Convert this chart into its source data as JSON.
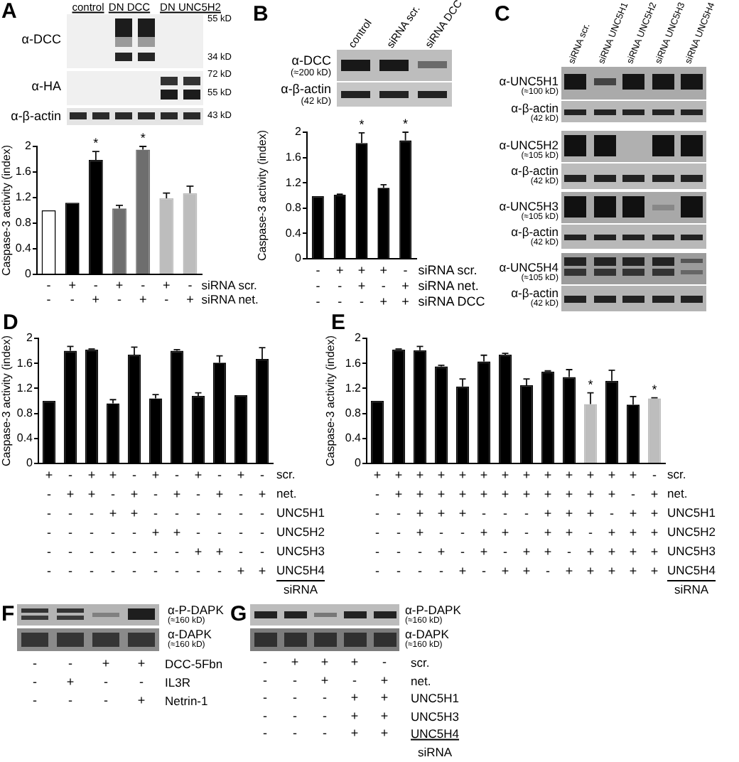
{
  "chart_data": [
    {
      "type": "other",
      "title": "A",
      "categories": [
        "control",
        "DN DCC",
        "DN UNC5H2"
      ],
      "annotations": [
        "α-DCC",
        "α-HA",
        "α-β-actin",
        "55 kD",
        "34 kD",
        "72 kD",
        "55 kD",
        "43 kD"
      ]
    },
    {
      "type": "bar",
      "ylabel": "Caspase-3 activity (index)",
      "categories": [
        "-\n-",
        "+\n-",
        "-\n+",
        "+\n-",
        "-\n+",
        "+\n-",
        "-\n+"
      ],
      "values": [
        1.0,
        1.12,
        1.79,
        1.03,
        1.95,
        1.19,
        1.27
      ],
      "colors": [
        "#ffffff",
        "#000000",
        "#000000",
        "#6e6e6e",
        "#6e6e6e",
        "#bdbdbd",
        "#bdbdbd"
      ],
      "errors": [
        null,
        null,
        [
          1.79,
          1.92
        ],
        [
          1.03,
          1.08
        ],
        [
          1.95,
          2.0
        ],
        [
          1.19,
          1.27
        ],
        [
          1.27,
          1.38
        ]
      ],
      "value_labels": [
        null,
        null,
        "*",
        null,
        "*",
        null,
        null
      ],
      "ylim": [
        0,
        2
      ],
      "yticks": [
        0,
        0.4,
        0.8,
        1.2,
        1.6,
        2
      ],
      "annotations": [
        "siRNA scr.",
        "siRNA net."
      ]
    },
    {
      "type": "other",
      "title": "B",
      "categories": [
        "control",
        "siRNA scr.",
        "siRNA DCC"
      ],
      "annotations": [
        "α-DCC",
        "(≈200 kD)",
        "α-β-actin",
        "(42 kD)"
      ]
    },
    {
      "type": "bar",
      "ylabel": "Caspase-3 activity (index)",
      "categories": [
        "-\n-\n-",
        "+\n-\n-",
        "+\n+\n-",
        "+\n-\n+",
        "-\n+\n+"
      ],
      "values": [
        0.99,
        1.01,
        1.83,
        1.12,
        1.87
      ],
      "color": "#000000",
      "errors": [
        null,
        [
          1.01,
          1.02
        ],
        [
          1.83,
          1.99
        ],
        [
          1.12,
          1.17
        ],
        [
          1.87,
          2.0
        ]
      ],
      "value_labels": [
        null,
        null,
        "*",
        null,
        "*"
      ],
      "ylim": [
        0,
        2
      ],
      "yticks": [
        0,
        0.4,
        0.8,
        1.2,
        1.6,
        2
      ],
      "annotations": [
        "siRNA scr.",
        "siRNA net.",
        "siRNA DCC"
      ]
    },
    {
      "type": "other",
      "title": "C",
      "categories": [
        "siRNA scr.",
        "siRNA UNC5H1",
        "siRNA UNC5H2",
        "siRNA UNC5H3",
        "siRNA UNC5H4"
      ],
      "annotations": [
        "α-UNC5H1",
        "(≈100 kD)",
        "α-β-actin",
        "(42 kD)",
        "α-UNC5H2",
        "(≈105 kD)",
        "α-β-actin",
        "(42 kD)",
        "α-UNC5H3",
        "(≈105 kD)",
        "α-β-actin",
        "(42 kD)",
        "α-UNC5H4",
        "(≈105 kD)",
        "α-β-actin",
        "(42 kD)"
      ]
    },
    {
      "type": "bar",
      "title": "D",
      "ylabel": "Caspase-3 activity (index)",
      "xlabel": "siRNA",
      "categories": [
        "+\n-\n-\n-\n-\n-",
        "-\n+\n-\n-\n-\n-",
        "+\n+\n-\n-\n-\n-",
        "+\n-\n+\n-\n-\n-",
        "-\n+\n+\n-\n-\n-",
        "+\n-\n-\n+\n-\n-",
        "-\n+\n-\n+\n-\n-",
        "+\n-\n-\n-\n+\n-",
        "-\n+\n-\n-\n+\n-",
        "+\n-\n-\n-\n-\n+",
        "-\n+\n-\n-\n-\n+"
      ],
      "values": [
        1.0,
        1.8,
        1.82,
        0.96,
        1.74,
        1.04,
        1.8,
        1.08,
        1.61,
        1.09,
        1.67
      ],
      "color": "#000000",
      "errors": [
        null,
        [
          1.8,
          1.87
        ],
        [
          1.82,
          1.83
        ],
        [
          0.96,
          1.02
        ],
        [
          1.74,
          1.86
        ],
        [
          1.04,
          1.1
        ],
        [
          1.8,
          1.82
        ],
        [
          1.08,
          1.13
        ],
        [
          1.61,
          1.72
        ],
        null,
        [
          1.67,
          1.85
        ]
      ],
      "ylim": [
        0,
        2
      ],
      "yticks": [
        0,
        0.4,
        0.8,
        1.2,
        1.6,
        2
      ],
      "annotations": [
        "scr.",
        "net.",
        "UNC5H1",
        "UNC5H2",
        "UNC5H3",
        "UNC5H4"
      ]
    },
    {
      "type": "bar",
      "title": "E",
      "ylabel": "Caspase-3 activity (index)",
      "xlabel": "siRNA",
      "categories": [
        "+\n-\n-\n-\n-\n-",
        "+\n+\n-\n-\n-\n-",
        "+\n+\n+\n+\n-\n-",
        "+\n+\n+\n-\n+\n-",
        "+\n+\n+\n-\n-\n+",
        "+\n+\n-\n+\n+\n-",
        "+\n+\n-\n+\n-\n+",
        "+\n+\n-\n-\n+\n+",
        "+\n+\n+\n+\n+\n-",
        "+\n+\n+\n+\n-\n+",
        "+\n+\n+\n-\n+\n+",
        "+\n+\n-\n+\n+\n+",
        "+\n-\n+\n+\n+\n+",
        "-\n+\n+\n+\n+\n+"
      ],
      "values": [
        1.0,
        1.82,
        1.81,
        1.55,
        1.23,
        1.63,
        1.74,
        1.25,
        1.47,
        1.38,
        0.95,
        1.32,
        0.94,
        1.04
      ],
      "colors": [
        "#000000",
        "#000000",
        "#000000",
        "#000000",
        "#000000",
        "#000000",
        "#000000",
        "#000000",
        "#000000",
        "#000000",
        "#bdbdbd",
        "#000000",
        "#000000",
        "#bdbdbd"
      ],
      "errors": [
        null,
        [
          1.82,
          1.83
        ],
        [
          1.81,
          1.87
        ],
        [
          1.55,
          1.57
        ],
        [
          1.23,
          1.35
        ],
        [
          1.63,
          1.73
        ],
        [
          1.74,
          1.76
        ],
        [
          1.25,
          1.35
        ],
        [
          1.47,
          1.48
        ],
        [
          1.38,
          1.5
        ],
        [
          0.95,
          1.13
        ],
        [
          1.32,
          1.49
        ],
        [
          0.94,
          1.07
        ],
        [
          1.04,
          1.05
        ]
      ],
      "value_labels": [
        null,
        null,
        null,
        null,
        null,
        null,
        null,
        null,
        null,
        null,
        "*",
        null,
        null,
        "*"
      ],
      "ylim": [
        0,
        2
      ],
      "yticks": [
        0,
        0.4,
        0.8,
        1.2,
        1.6,
        2
      ],
      "annotations": [
        "scr.",
        "net.",
        "UNC5H1",
        "UNC5H2",
        "UNC5H3",
        "UNC5H4"
      ]
    },
    {
      "type": "other",
      "title": "F",
      "categories": [
        "-\n-\n-",
        "-\n+\n-",
        "+\n-\n-",
        "+\n-\n+"
      ],
      "annotations": [
        "α-P-DAPK",
        "(≈160 kD)",
        "α-DAPK",
        "(≈160 kD)",
        "DCC-5Fbn",
        "IL3R",
        "Netrin-1"
      ]
    },
    {
      "type": "other",
      "title": "G",
      "xlabel": "siRNA",
      "categories": [
        "-\n-\n-\n-\n-",
        "+\n-\n-\n-\n-",
        "+\n+\n-\n-\n-",
        "+\n-\n+\n+\n+",
        "-\n+\n+\n+\n+"
      ],
      "annotations": [
        "α-P-DAPK",
        "(≈160 kD)",
        "α-DAPK",
        "(≈160 kD)",
        "scr.",
        "net.",
        "UNC5H1",
        "UNC5H3",
        "UNC5H4"
      ]
    }
  ]
}
